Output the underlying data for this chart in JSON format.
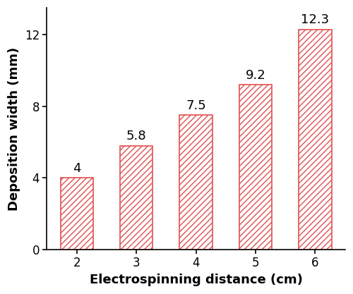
{
  "categories": [
    2,
    3,
    4,
    5,
    6
  ],
  "values": [
    4.0,
    5.8,
    7.5,
    9.2,
    12.3
  ],
  "bar_face_color": "white",
  "bar_edge_color": "#e05050",
  "hatch_color": "#e05050",
  "xlabel": "Electrospinning distance (cm)",
  "ylabel": "Deposition width (mm)",
  "ylim": [
    0,
    13.5
  ],
  "yticks": [
    0,
    4,
    8,
    12
  ],
  "label_fontsize": 13,
  "tick_fontsize": 12,
  "annotation_fontsize": 13,
  "bar_width": 0.55,
  "hatch": "////"
}
